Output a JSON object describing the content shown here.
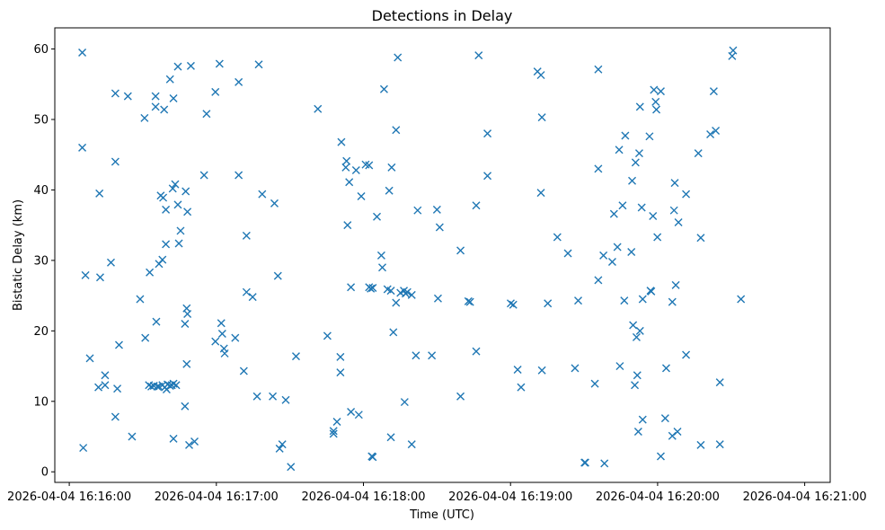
{
  "chart_data": {
    "type": "scatter",
    "title": "Detections in Delay",
    "xlabel": "Time (UTC)",
    "ylabel": "Bistatic Delay (km)",
    "x_unit": "seconds after 2026-04-04 16:16:00",
    "xlim": [
      -5.9,
      310.4
    ],
    "ylim": [
      -1.5,
      63
    ],
    "x_ticks": [
      {
        "value": 0,
        "label": "2026-04-04 16:16:00"
      },
      {
        "value": 60,
        "label": "2026-04-04 16:17:00"
      },
      {
        "value": 120,
        "label": "2026-04-04 16:18:00"
      },
      {
        "value": 180,
        "label": "2026-04-04 16:19:00"
      },
      {
        "value": 240,
        "label": "2026-04-04 16:20:00"
      },
      {
        "value": 300,
        "label": "2026-04-04 16:21:00"
      }
    ],
    "y_ticks": [
      0,
      10,
      20,
      30,
      40,
      50,
      60
    ],
    "marker": "x",
    "color": "#1f77b4",
    "grid": false,
    "series": [
      {
        "points": [
          [
            5.3,
            59.5
          ],
          [
            5.3,
            46.0
          ],
          [
            5.7,
            3.4
          ],
          [
            6.6,
            27.9
          ],
          [
            8.4,
            16.1
          ],
          [
            11.9,
            12.0
          ],
          [
            12.6,
            27.6
          ],
          [
            12.3,
            39.5
          ],
          [
            14.6,
            13.7
          ],
          [
            14.6,
            12.3
          ],
          [
            17.0,
            29.7
          ],
          [
            18.8,
            53.7
          ],
          [
            18.8,
            44.0
          ],
          [
            18.8,
            7.8
          ],
          [
            19.6,
            11.8
          ],
          [
            20.3,
            18.0
          ],
          [
            23.9,
            53.3
          ],
          [
            25.6,
            5.0
          ],
          [
            28.9,
            24.5
          ],
          [
            30.7,
            50.2
          ],
          [
            31.0,
            19.0
          ],
          [
            32.5,
            12.3
          ],
          [
            32.8,
            28.3
          ],
          [
            33.5,
            12.1
          ],
          [
            34.5,
            12.2
          ],
          [
            35.2,
            53.3
          ],
          [
            35.2,
            51.8
          ],
          [
            35.5,
            21.3
          ],
          [
            35.9,
            12.1
          ],
          [
            36.6,
            29.5
          ],
          [
            36.6,
            12.1
          ],
          [
            37.3,
            39.2
          ],
          [
            38.0,
            30.1
          ],
          [
            38.0,
            12.3
          ],
          [
            38.3,
            38.9
          ],
          [
            38.7,
            51.4
          ],
          [
            39.0,
            12.0
          ],
          [
            39.4,
            32.3
          ],
          [
            39.4,
            37.2
          ],
          [
            39.7,
            11.7
          ],
          [
            40.1,
            12.4
          ],
          [
            41.1,
            55.7
          ],
          [
            41.1,
            12.2
          ],
          [
            41.8,
            12.3
          ],
          [
            42.2,
            40.2
          ],
          [
            42.5,
            53.0
          ],
          [
            42.5,
            12.5
          ],
          [
            42.5,
            4.7
          ],
          [
            43.2,
            40.8
          ],
          [
            43.6,
            12.3
          ],
          [
            44.3,
            57.5
          ],
          [
            44.3,
            37.9
          ],
          [
            44.7,
            32.4
          ],
          [
            45.4,
            34.2
          ],
          [
            47.2,
            9.3
          ],
          [
            47.2,
            21.0
          ],
          [
            47.5,
            39.8
          ],
          [
            47.9,
            23.2
          ],
          [
            48.2,
            22.4
          ],
          [
            47.9,
            15.3
          ],
          [
            48.2,
            36.9
          ],
          [
            48.9,
            3.8
          ],
          [
            49.6,
            57.6
          ],
          [
            51.1,
            4.3
          ],
          [
            55.0,
            42.1
          ],
          [
            56.0,
            50.8
          ],
          [
            59.6,
            53.9
          ],
          [
            59.6,
            18.5
          ],
          [
            61.3,
            57.9
          ],
          [
            62.0,
            21.1
          ],
          [
            62.4,
            19.6
          ],
          [
            63.1,
            17.5
          ],
          [
            63.4,
            16.8
          ],
          [
            67.7,
            19.0
          ],
          [
            69.1,
            42.1
          ],
          [
            69.1,
            55.3
          ],
          [
            71.2,
            14.3
          ],
          [
            72.3,
            33.5
          ],
          [
            72.3,
            25.5
          ],
          [
            74.8,
            24.8
          ],
          [
            76.6,
            10.7
          ],
          [
            77.3,
            57.8
          ],
          [
            78.7,
            39.4
          ],
          [
            83.0,
            10.7
          ],
          [
            83.7,
            38.1
          ],
          [
            85.1,
            27.8
          ],
          [
            85.8,
            3.3
          ],
          [
            86.9,
            3.9
          ],
          [
            88.3,
            10.2
          ],
          [
            90.4,
            0.7
          ],
          [
            92.5,
            16.4
          ],
          [
            101.4,
            51.5
          ],
          [
            105.3,
            19.3
          ],
          [
            107.8,
            5.8
          ],
          [
            107.8,
            5.4
          ],
          [
            109.2,
            7.1
          ],
          [
            110.6,
            16.3
          ],
          [
            110.6,
            14.1
          ],
          [
            111.0,
            46.8
          ],
          [
            112.8,
            43.2
          ],
          [
            113.1,
            44.1
          ],
          [
            113.5,
            35.0
          ],
          [
            114.2,
            41.1
          ],
          [
            114.9,
            8.5
          ],
          [
            114.9,
            26.2
          ],
          [
            117.0,
            42.8
          ],
          [
            118.1,
            8.1
          ],
          [
            119.1,
            39.1
          ],
          [
            120.9,
            43.6
          ],
          [
            122.3,
            43.5
          ],
          [
            122.3,
            26.2
          ],
          [
            123.0,
            26.0
          ],
          [
            123.8,
            26.1
          ],
          [
            123.4,
            2.2
          ],
          [
            123.8,
            2.1
          ],
          [
            125.5,
            36.2
          ],
          [
            127.3,
            30.7
          ],
          [
            127.7,
            29.0
          ],
          [
            128.4,
            54.3
          ],
          [
            129.8,
            25.9
          ],
          [
            130.5,
            39.9
          ],
          [
            131.2,
            25.7
          ],
          [
            131.2,
            4.9
          ],
          [
            131.5,
            43.2
          ],
          [
            132.2,
            19.8
          ],
          [
            133.3,
            48.5
          ],
          [
            133.3,
            24.0
          ],
          [
            134.0,
            58.8
          ],
          [
            135.1,
            25.4
          ],
          [
            136.5,
            25.7
          ],
          [
            136.8,
            9.9
          ],
          [
            137.2,
            25.3
          ],
          [
            137.9,
            25.5
          ],
          [
            139.7,
            25.1
          ],
          [
            139.7,
            3.9
          ],
          [
            142.1,
            37.1
          ],
          [
            141.4,
            16.5
          ],
          [
            147.9,
            16.5
          ],
          [
            150.0,
            37.2
          ],
          [
            150.4,
            24.6
          ],
          [
            151.1,
            34.7
          ],
          [
            159.6,
            10.7
          ],
          [
            159.6,
            31.4
          ],
          [
            162.8,
            24.2
          ],
          [
            163.5,
            24.1
          ],
          [
            166.0,
            37.8
          ],
          [
            166.0,
            17.1
          ],
          [
            167.0,
            59.1
          ],
          [
            170.6,
            42.0
          ],
          [
            170.6,
            48.0
          ],
          [
            180.1,
            23.9
          ],
          [
            181.1,
            23.7
          ],
          [
            182.9,
            14.5
          ],
          [
            184.3,
            12.0
          ],
          [
            191.0,
            56.8
          ],
          [
            192.4,
            56.3
          ],
          [
            192.4,
            39.6
          ],
          [
            192.8,
            50.3
          ],
          [
            192.8,
            14.4
          ],
          [
            195.2,
            23.9
          ],
          [
            199.1,
            33.3
          ],
          [
            203.4,
            31.0
          ],
          [
            206.3,
            14.7
          ],
          [
            207.6,
            24.3
          ],
          [
            210.2,
            1.3
          ],
          [
            210.5,
            1.3
          ],
          [
            214.4,
            12.5
          ],
          [
            215.8,
            57.1
          ],
          [
            215.8,
            43.0
          ],
          [
            215.8,
            27.2
          ],
          [
            217.9,
            30.7
          ],
          [
            218.3,
            1.2
          ],
          [
            221.5,
            29.8
          ],
          [
            222.2,
            36.6
          ],
          [
            223.6,
            31.9
          ],
          [
            224.3,
            45.7
          ],
          [
            224.6,
            15.0
          ],
          [
            225.7,
            37.8
          ],
          [
            226.8,
            47.7
          ],
          [
            226.4,
            24.3
          ],
          [
            229.3,
            31.2
          ],
          [
            229.6,
            41.3
          ],
          [
            230.0,
            20.8
          ],
          [
            230.7,
            12.3
          ],
          [
            231.0,
            43.9
          ],
          [
            231.4,
            19.1
          ],
          [
            231.7,
            13.7
          ],
          [
            232.1,
            5.7
          ],
          [
            232.5,
            45.2
          ],
          [
            232.8,
            51.8
          ],
          [
            232.8,
            20.0
          ],
          [
            233.5,
            37.5
          ],
          [
            233.9,
            7.4
          ],
          [
            233.9,
            24.5
          ],
          [
            236.7,
            47.6
          ],
          [
            237.1,
            25.7
          ],
          [
            237.4,
            25.6
          ],
          [
            238.1,
            36.3
          ],
          [
            238.5,
            54.2
          ],
          [
            239.2,
            52.5
          ],
          [
            239.5,
            51.4
          ],
          [
            239.9,
            33.3
          ],
          [
            241.3,
            54.0
          ],
          [
            241.3,
            2.2
          ],
          [
            243.1,
            7.6
          ],
          [
            243.5,
            14.7
          ],
          [
            246.0,
            24.1
          ],
          [
            246.0,
            5.1
          ],
          [
            246.7,
            37.1
          ],
          [
            247.0,
            41.0
          ],
          [
            247.4,
            26.5
          ],
          [
            248.1,
            5.7
          ],
          [
            248.5,
            35.4
          ],
          [
            251.6,
            39.4
          ],
          [
            251.6,
            16.6
          ],
          [
            256.6,
            45.2
          ],
          [
            257.6,
            3.8
          ],
          [
            257.6,
            33.2
          ],
          [
            261.5,
            47.9
          ],
          [
            262.9,
            54.0
          ],
          [
            263.7,
            48.4
          ],
          [
            265.4,
            12.7
          ],
          [
            265.4,
            3.9
          ],
          [
            270.4,
            59.0
          ],
          [
            270.8,
            59.8
          ],
          [
            274.0,
            24.5
          ]
        ]
      }
    ]
  }
}
